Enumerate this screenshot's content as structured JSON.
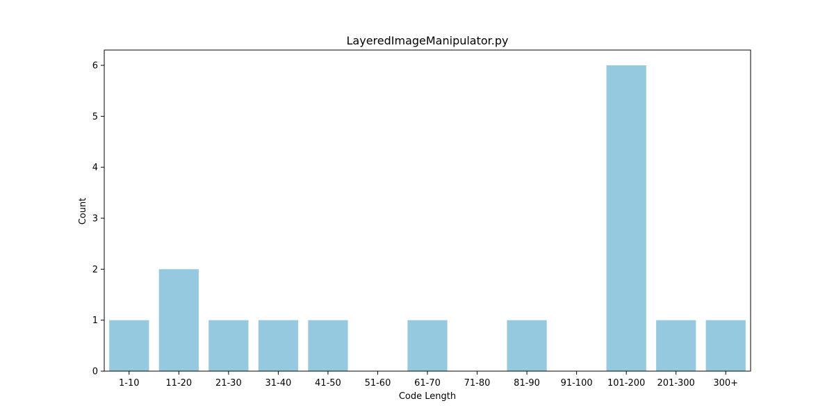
{
  "chart_data": {
    "type": "bar",
    "title": "LayeredImageManipulator.py",
    "xlabel": "Code Length",
    "ylabel": "Count",
    "categories": [
      "1-10",
      "11-20",
      "21-30",
      "31-40",
      "41-50",
      "51-60",
      "61-70",
      "71-80",
      "81-90",
      "91-100",
      "101-200",
      "201-300",
      "300+"
    ],
    "values": [
      1,
      2,
      1,
      1,
      1,
      0,
      1,
      0,
      1,
      0,
      6,
      1,
      1
    ],
    "yticks": [
      0,
      1,
      2,
      3,
      4,
      5,
      6
    ],
    "ylim": [
      0,
      6.3
    ],
    "grid": false,
    "bar_color": "#94c9df"
  }
}
